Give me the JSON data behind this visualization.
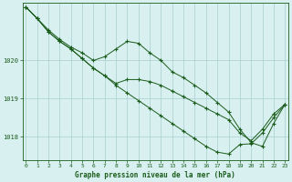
{
  "title": "Graphe pression niveau de la mer (hPa)",
  "bg_color": "#d8f0f0",
  "line_color": "#1a5c1a",
  "grid_color": "#a8cece",
  "x_ticks": [
    0,
    1,
    2,
    3,
    4,
    5,
    6,
    7,
    8,
    9,
    10,
    11,
    12,
    13,
    14,
    15,
    16,
    17,
    18,
    19,
    20,
    21,
    22,
    23
  ],
  "y_ticks": [
    1018,
    1019,
    1020
  ],
  "ylim": [
    1017.4,
    1021.5
  ],
  "xlim": [
    -0.3,
    23.3
  ],
  "series": [
    [
      1021.4,
      1021.1,
      1020.8,
      1020.55,
      1020.35,
      1020.2,
      1020.0,
      1020.1,
      1020.3,
      1020.5,
      1020.45,
      1020.2,
      1020.0,
      1019.7,
      1019.55,
      1019.35,
      1019.15,
      1018.9,
      1018.65,
      1018.2,
      1017.85,
      1017.75,
      1018.35,
      1018.85
    ],
    [
      1021.4,
      1021.1,
      1020.75,
      1020.5,
      1020.3,
      1020.05,
      1019.8,
      1019.6,
      1019.35,
      1019.15,
      1018.95,
      1018.75,
      1018.55,
      1018.35,
      1018.15,
      1017.95,
      1017.75,
      1017.6,
      1017.55,
      1017.8,
      1017.82,
      1018.1,
      1018.5,
      1018.85
    ],
    [
      1021.4,
      1021.1,
      1020.75,
      1020.5,
      1020.3,
      1020.05,
      1019.8,
      1019.6,
      1019.4,
      1019.5,
      1019.5,
      1019.45,
      1019.35,
      1019.2,
      1019.05,
      1018.9,
      1018.75,
      1018.6,
      1018.45,
      1018.1,
      1017.9,
      1018.2,
      1018.6,
      1018.85
    ]
  ]
}
